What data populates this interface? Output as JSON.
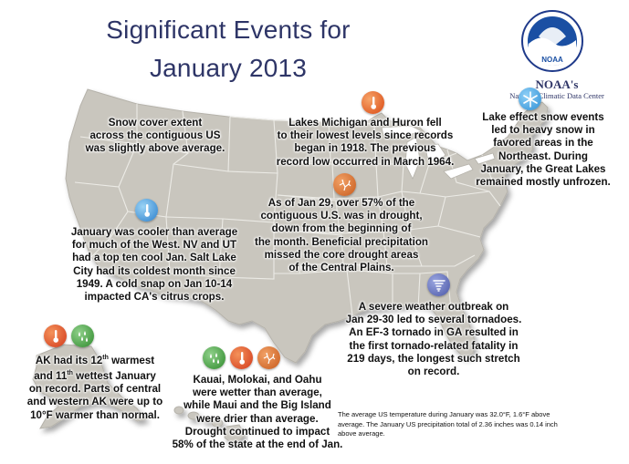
{
  "title": {
    "line1": "Significant Events for",
    "line2": "January 2013"
  },
  "logo": {
    "emblem_text": "NOAA",
    "name": "NOAA's",
    "center": "National Climatic Data Center"
  },
  "annotations": {
    "snow_cover": {
      "lines": [
        "Snow cover extent",
        "across the contiguous US",
        "was slightly above average."
      ],
      "icon": "snow-icon"
    },
    "lakes_michigan_huron": {
      "lines": [
        "Lakes Michigan and Huron fell",
        "to their lowest levels since records",
        "began in 1918. The previous",
        "record low occurred in March 1964."
      ],
      "icon": "thermometer-warm-icon"
    },
    "lake_effect_snow": {
      "lines": [
        "Lake effect snow events",
        "led to heavy snow in",
        "favored areas in the",
        "Northeast. During",
        "January, the Great Lakes",
        "remained mostly unfrozen."
      ],
      "icon": "snowflake-icon"
    },
    "drought": {
      "lines": [
        "As of Jan 29, over 57% of the",
        "contiguous U.S. was in drought,",
        "down from the beginning of",
        "the month. Beneficial precipitation",
        "missed the core drought areas",
        "of the Central Plains."
      ],
      "icon": "drought-icon"
    },
    "cool_west": {
      "lines": [
        "January was cooler than average",
        "for much of the West. NV and UT",
        "had a top ten cool Jan. Salt Lake",
        "City had its coldest month since",
        "1949. A cold snap on Jan 10-14",
        "impacted CA's citrus crops."
      ],
      "icon": "thermometer-cold-icon"
    },
    "tornado": {
      "lines": [
        "A severe weather outbreak on",
        "Jan 29-30 led to several tornadoes.",
        "An EF-3 tornado in GA resulted in",
        "the first tornado-related fatality in",
        "219 days, the longest such stretch",
        "on record."
      ],
      "icon": "tornado-icon"
    },
    "alaska": {
      "line1_pre": "AK had its 12",
      "line1_sup": "th",
      "line1_post": " warmest",
      "line2_pre": "and 11",
      "line2_sup": "th",
      "line2_post": " wettest January",
      "lines_rest": [
        "on record. Parts of central",
        "and western AK were up to",
        "10°F warmer than normal."
      ],
      "icons": [
        "thermometer-warm-icon",
        "wet-icon"
      ]
    },
    "hawaii": {
      "lines": [
        "Kauai, Molokai, and Oahu",
        "were wetter than average,",
        "while Maui and the Big Island",
        "were drier than average.",
        "Drought continued to impact",
        "58% of the state at the end of Jan."
      ],
      "icons": [
        "wet-icon",
        "thermometer-warm-icon",
        "drought-icon"
      ]
    }
  },
  "footnote": {
    "line1": "The average US temperature during January was 32.0°F, 1.6°F above",
    "line2": "average. The January US precipitation total of 2.36 inches was 0.14 inch",
    "line3": "above average."
  },
  "colors": {
    "title": "#2e3567",
    "map_fill": "#c9c6be",
    "map_stroke": "#f4f4f0",
    "warm": "#e2561d",
    "cold": "#3b8fd6",
    "wet": "#3f9a3a",
    "drought": "#c96a2a",
    "tornado": "#5a6ab8",
    "snow": "#4fa9e3"
  }
}
